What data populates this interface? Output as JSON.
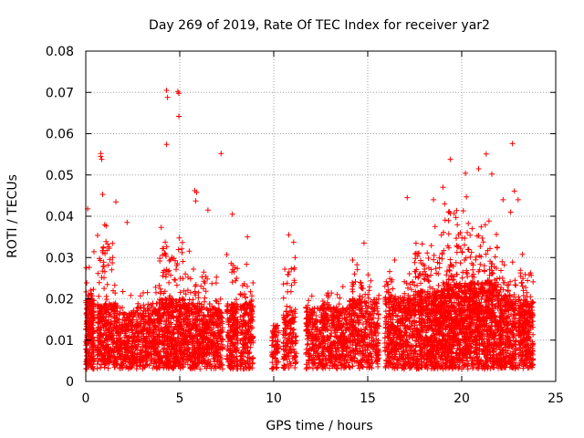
{
  "chart_data": {
    "type": "scatter",
    "title": "Day 269 of 2019, Rate Of TEC Index for receiver yar2",
    "xlabel": "GPS time / hours",
    "ylabel": "ROTI / TECUs",
    "xlim": [
      0,
      25
    ],
    "ylim": [
      0,
      0.08
    ],
    "xticks": [
      0,
      5,
      10,
      15,
      20,
      25
    ],
    "yticks": [
      0,
      0.01,
      0.02,
      0.03,
      0.04,
      0.05,
      0.06,
      0.07,
      0.08
    ],
    "xtick_labels": [
      "0",
      "5",
      "10",
      "15",
      "20",
      "25"
    ],
    "ytick_labels": [
      "0",
      "0.01",
      "0.02",
      "0.03",
      "0.04",
      "0.05",
      "0.06",
      "0.07",
      "0.08"
    ],
    "grid": true,
    "marker": "+",
    "color": "#ff0000",
    "notable_points": [
      {
        "x": 4.3,
        "y": 0.0705
      },
      {
        "x": 4.35,
        "y": 0.0688
      },
      {
        "x": 4.9,
        "y": 0.0702
      },
      {
        "x": 4.95,
        "y": 0.0698
      },
      {
        "x": 4.95,
        "y": 0.0642
      },
      {
        "x": 4.3,
        "y": 0.0574
      },
      {
        "x": 7.2,
        "y": 0.0552
      },
      {
        "x": 0.8,
        "y": 0.0552
      },
      {
        "x": 0.8,
        "y": 0.0545
      },
      {
        "x": 0.85,
        "y": 0.0538
      },
      {
        "x": 19.4,
        "y": 0.0538
      },
      {
        "x": 22.7,
        "y": 0.0576
      },
      {
        "x": 21.3,
        "y": 0.0551
      },
      {
        "x": 20.9,
        "y": 0.0515
      },
      {
        "x": 20.2,
        "y": 0.0504
      },
      {
        "x": 21.6,
        "y": 0.0502
      },
      {
        "x": 5.8,
        "y": 0.0462
      },
      {
        "x": 5.9,
        "y": 0.0458
      },
      {
        "x": 5.85,
        "y": 0.0437
      },
      {
        "x": 22.8,
        "y": 0.0461
      },
      {
        "x": 23.0,
        "y": 0.044
      },
      {
        "x": 0.1,
        "y": 0.0418
      },
      {
        "x": 0.9,
        "y": 0.0453
      },
      {
        "x": 1.6,
        "y": 0.0435
      },
      {
        "x": 2.2,
        "y": 0.0385
      },
      {
        "x": 6.5,
        "y": 0.0415
      },
      {
        "x": 7.8,
        "y": 0.0405
      },
      {
        "x": 17.1,
        "y": 0.0445
      },
      {
        "x": 18.5,
        "y": 0.044
      },
      {
        "x": 19.0,
        "y": 0.047
      },
      {
        "x": 19.3,
        "y": 0.041
      },
      {
        "x": 22.2,
        "y": 0.044
      },
      {
        "x": 22.6,
        "y": 0.041
      },
      {
        "x": 10.8,
        "y": 0.0355
      },
      {
        "x": 14.8,
        "y": 0.0335
      },
      {
        "x": 8.6,
        "y": 0.035
      }
    ],
    "clusters": [
      {
        "x0": 0.0,
        "x1": 0.45,
        "n": 230,
        "base": 0.011,
        "top": 0.032
      },
      {
        "x0": 0.6,
        "x1": 1.6,
        "n": 340,
        "base": 0.01,
        "top": 0.04
      },
      {
        "x0": 1.6,
        "x1": 2.7,
        "n": 280,
        "base": 0.008,
        "top": 0.022
      },
      {
        "x0": 2.7,
        "x1": 3.9,
        "n": 330,
        "base": 0.009,
        "top": 0.023
      },
      {
        "x0": 3.9,
        "x1": 5.2,
        "n": 460,
        "base": 0.011,
        "top": 0.04
      },
      {
        "x0": 5.2,
        "x1": 6.5,
        "n": 420,
        "base": 0.01,
        "top": 0.033
      },
      {
        "x0": 6.5,
        "x1": 7.3,
        "n": 220,
        "base": 0.009,
        "top": 0.026
      },
      {
        "x0": 7.5,
        "x1": 8.1,
        "n": 220,
        "base": 0.01,
        "top": 0.035
      },
      {
        "x0": 8.2,
        "x1": 8.9,
        "n": 200,
        "base": 0.01,
        "top": 0.03
      },
      {
        "x0": 9.9,
        "x1": 10.25,
        "n": 70,
        "base": 0.006,
        "top": 0.014
      },
      {
        "x0": 10.5,
        "x1": 11.2,
        "n": 160,
        "base": 0.008,
        "top": 0.034
      },
      {
        "x0": 11.7,
        "x1": 12.8,
        "n": 260,
        "base": 0.009,
        "top": 0.022
      },
      {
        "x0": 12.8,
        "x1": 14.0,
        "n": 310,
        "base": 0.009,
        "top": 0.024
      },
      {
        "x0": 14.0,
        "x1": 15.6,
        "n": 420,
        "base": 0.011,
        "top": 0.03
      },
      {
        "x0": 15.9,
        "x1": 17.5,
        "n": 500,
        "base": 0.012,
        "top": 0.03
      },
      {
        "x0": 17.5,
        "x1": 19.0,
        "n": 620,
        "base": 0.013,
        "top": 0.038
      },
      {
        "x0": 19.0,
        "x1": 20.5,
        "n": 700,
        "base": 0.015,
        "top": 0.045
      },
      {
        "x0": 20.5,
        "x1": 21.9,
        "n": 620,
        "base": 0.015,
        "top": 0.04
      },
      {
        "x0": 21.9,
        "x1": 22.9,
        "n": 360,
        "base": 0.012,
        "top": 0.03
      },
      {
        "x0": 23.0,
        "x1": 23.8,
        "n": 300,
        "base": 0.011,
        "top": 0.032
      }
    ]
  }
}
